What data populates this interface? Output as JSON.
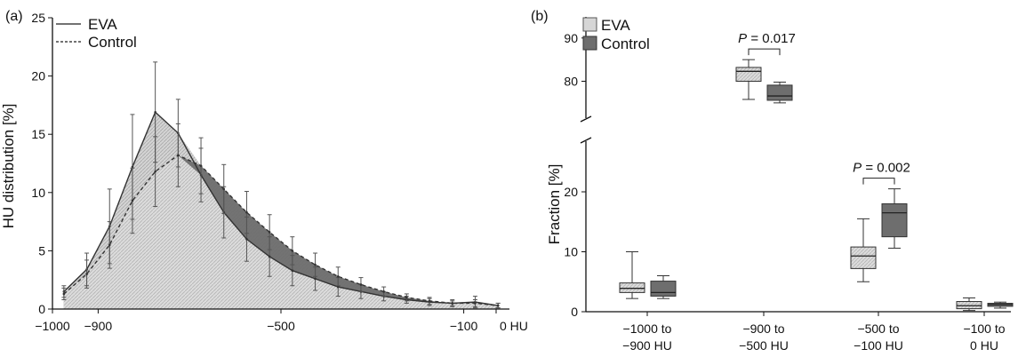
{
  "colors": {
    "eva_fill": "#d2d2d2",
    "eva_stroke": "#555555",
    "control_fill": "#6e6e6e",
    "axis": "#111111"
  },
  "chart_data": [
    {
      "type": "line",
      "panel_label": "(a)",
      "ylabel": "HU distribution [%]",
      "x_ticks": [
        "−1000",
        "−900",
        "−500",
        "−100",
        "0 HU"
      ],
      "x_tick_values": [
        -1000,
        -900,
        -500,
        -100,
        0
      ],
      "y_ticks": [
        "0",
        "5",
        "10",
        "15",
        "20",
        "25"
      ],
      "y_tick_values": [
        0,
        5,
        10,
        15,
        20,
        25
      ],
      "xlim": [
        -1000,
        0
      ],
      "ylim": [
        0,
        25
      ],
      "legend": [
        "EVA",
        "Control"
      ],
      "legend_position": "top-left",
      "series": [
        {
          "name": "EVA",
          "x": [
            -975,
            -925,
            -875,
            -825,
            -775,
            -725,
            -675,
            -625,
            -575,
            -525,
            -475,
            -425,
            -375,
            -325,
            -275,
            -225,
            -175,
            -125,
            -75,
            -25
          ],
          "y": [
            1.5,
            3.4,
            7.1,
            12.2,
            16.9,
            15.1,
            11.5,
            8.3,
            6.0,
            4.5,
            3.3,
            2.6,
            1.9,
            1.5,
            1.1,
            0.8,
            0.6,
            0.5,
            0.6,
            0.3
          ],
          "err": [
            0.5,
            1.4,
            3.2,
            4.5,
            4.3,
            2.9,
            2.3,
            2.2,
            1.9,
            1.7,
            1.3,
            1.0,
            0.8,
            0.6,
            0.4,
            0.3,
            0.3,
            0.3,
            0.5,
            0.2
          ]
        },
        {
          "name": "Control",
          "x": [
            -975,
            -925,
            -875,
            -825,
            -775,
            -725,
            -675,
            -625,
            -575,
            -525,
            -475,
            -425,
            -375,
            -325,
            -275,
            -225,
            -175,
            -125,
            -75,
            -25
          ],
          "y": [
            1.3,
            3.0,
            5.5,
            9.3,
            11.8,
            13.2,
            12.3,
            10.3,
            8.3,
            6.6,
            5.0,
            3.8,
            2.8,
            2.1,
            1.5,
            1.0,
            0.7,
            0.5,
            0.5,
            0.3
          ],
          "err": [
            0.5,
            1.2,
            2.0,
            2.8,
            3.0,
            2.7,
            2.4,
            2.1,
            1.8,
            1.5,
            1.2,
            1.0,
            0.8,
            0.6,
            0.4,
            0.3,
            0.3,
            0.2,
            0.3,
            0.2
          ]
        }
      ]
    },
    {
      "type": "box",
      "panel_label": "(b)",
      "ylabel": "Fraction [%]",
      "categories": [
        "−1000 to\n−900 HU",
        "−900 to\n−500 HU",
        "−500 to\n−100 HU",
        "−100 to\n0 HU"
      ],
      "y_ticks": [
        "0",
        "10",
        "20",
        "80",
        "90"
      ],
      "y_tick_values": [
        0,
        10,
        20,
        80,
        90
      ],
      "y_axis_break": [
        28,
        72
      ],
      "legend": [
        "EVA",
        "Control"
      ],
      "legend_position": "top-left",
      "series": [
        {
          "name": "EVA",
          "boxes": [
            {
              "min": 2.2,
              "q1": 3.2,
              "median": 3.9,
              "q3": 4.8,
              "max": 10.0
            },
            {
              "min": 75.8,
              "q1": 80.0,
              "median": 82.3,
              "q3": 83.2,
              "max": 85.0
            },
            {
              "min": 5.0,
              "q1": 7.2,
              "median": 9.3,
              "q3": 10.8,
              "max": 15.5
            },
            {
              "min": 0.2,
              "q1": 0.5,
              "median": 1.0,
              "q3": 1.7,
              "max": 2.3
            }
          ]
        },
        {
          "name": "Control",
          "boxes": [
            {
              "min": 2.2,
              "q1": 2.6,
              "median": 3.2,
              "q3": 5.1,
              "max": 6.0
            },
            {
              "min": 75.0,
              "q1": 75.6,
              "median": 76.6,
              "q3": 79.1,
              "max": 79.8
            },
            {
              "min": 10.6,
              "q1": 12.5,
              "median": 16.5,
              "q3": 18.0,
              "max": 20.5
            },
            {
              "min": 0.6,
              "q1": 0.9,
              "median": 1.2,
              "q3": 1.4,
              "max": 1.6
            }
          ]
        }
      ],
      "annotations": [
        {
          "text_prefix": "P",
          "text_value": " = 0.017",
          "category_index": 1
        },
        {
          "text_prefix": "P",
          "text_value": " = 0.002",
          "category_index": 2
        }
      ]
    }
  ]
}
